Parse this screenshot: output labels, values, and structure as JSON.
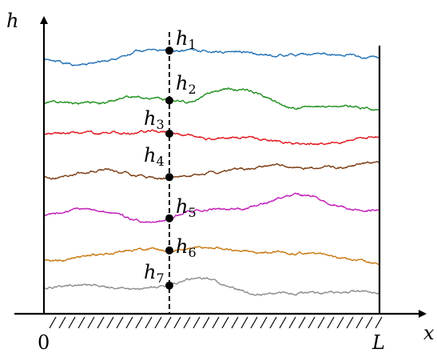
{
  "axes": {
    "y_label": "h",
    "x_label": "x",
    "origin_label": "0",
    "end_label": "L"
  },
  "curves": [
    {
      "id": "h1",
      "base": "h",
      "sub": "1",
      "color": "#1f6fb4"
    },
    {
      "id": "h2",
      "base": "h",
      "sub": "2",
      "color": "#1e8f1e"
    },
    {
      "id": "h3",
      "base": "h",
      "sub": "3",
      "color": "#e0141c"
    },
    {
      "id": "h4",
      "base": "h",
      "sub": "4",
      "color": "#7a3a10"
    },
    {
      "id": "h5",
      "base": "h",
      "sub": "5",
      "color": "#c21ab8"
    },
    {
      "id": "h6",
      "base": "h",
      "sub": "6",
      "color": "#c8780f"
    },
    {
      "id": "h7",
      "base": "h",
      "sub": "7",
      "color": "#8c8c8c"
    }
  ]
}
